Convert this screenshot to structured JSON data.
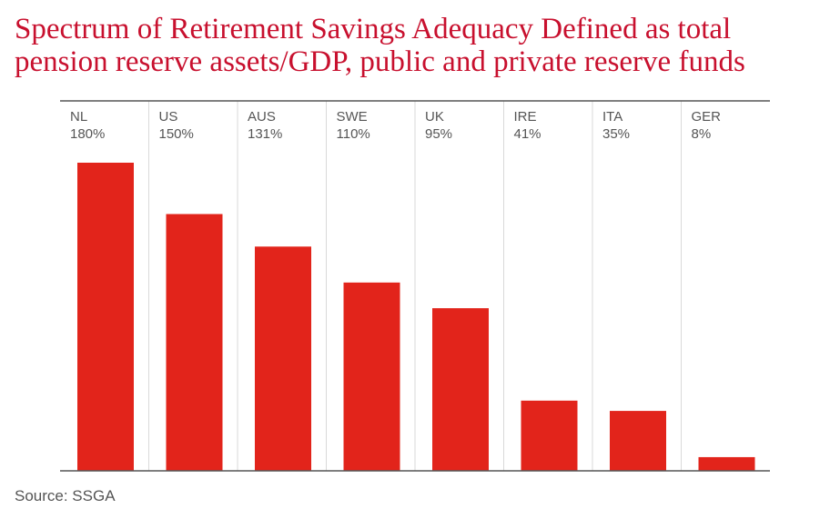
{
  "chart_data": {
    "type": "bar",
    "title_lines": [
      "Spectrum of Retirement Savings Adequacy Defined as total",
      "pension reserve assets/GDP, public and private reserve funds"
    ],
    "categories": [
      "NL",
      "US",
      "AUS",
      "SWE",
      "UK",
      "IRE",
      "ITA",
      "GER"
    ],
    "values": [
      180,
      150,
      131,
      110,
      95,
      41,
      35,
      8
    ],
    "value_labels": [
      "180%",
      "150%",
      "131%",
      "110%",
      "95%",
      "41%",
      "35%",
      "8%"
    ],
    "unit": "%",
    "ylim": [
      0,
      180
    ],
    "grid": true,
    "legend": "none",
    "bar_color": "#e2241b",
    "source": "Source: SSGA"
  },
  "colors": {
    "title": "#c8102e",
    "axis": "#555555",
    "gridline": "#d9d9d9"
  }
}
